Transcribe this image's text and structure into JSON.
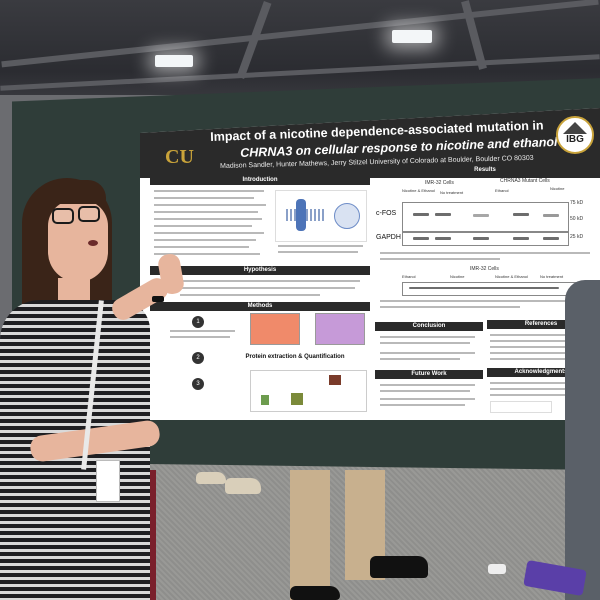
{
  "poster": {
    "title_line1": "Impact of a nicotine dependence-associated mutation in",
    "title_line2": "CHRNA3 on cellular response to nicotine and ethanol",
    "authors": "Madison Sandler, Hunter Mathews, Jerry Stitzel University of Colorado at Boulder, Boulder CO 80303",
    "logo_left": "CU",
    "logo_right": "IBG",
    "sections": {
      "introduction": "Introduction",
      "hypothesis": "Hypothesis",
      "methods": "Methods",
      "protein": "Protein extraction & Quantification",
      "results": "Results",
      "conclusion": "Conclusion",
      "references": "References",
      "future_work": "Future Work",
      "acknowledgments": "Acknowledgments"
    },
    "results_headers": {
      "imr32": "IMR-32 Cells",
      "chrna3_mutant": "CHRNA3 Mutant Cells",
      "imr32_lower": "IMR-32 Cells"
    },
    "conditions": [
      "Nicotine & Ethanol",
      "No treatment",
      "Ethanol",
      "Nicotine"
    ],
    "blot_labels": {
      "cfos": "c-FOS",
      "gapdh": "GAPDH"
    },
    "markers": [
      "75 kD",
      "50 kD",
      "25 kD"
    ],
    "colors": {
      "header": "#2a2a2a",
      "board": "#2f3d39",
      "gold": "#c9a33a"
    }
  }
}
